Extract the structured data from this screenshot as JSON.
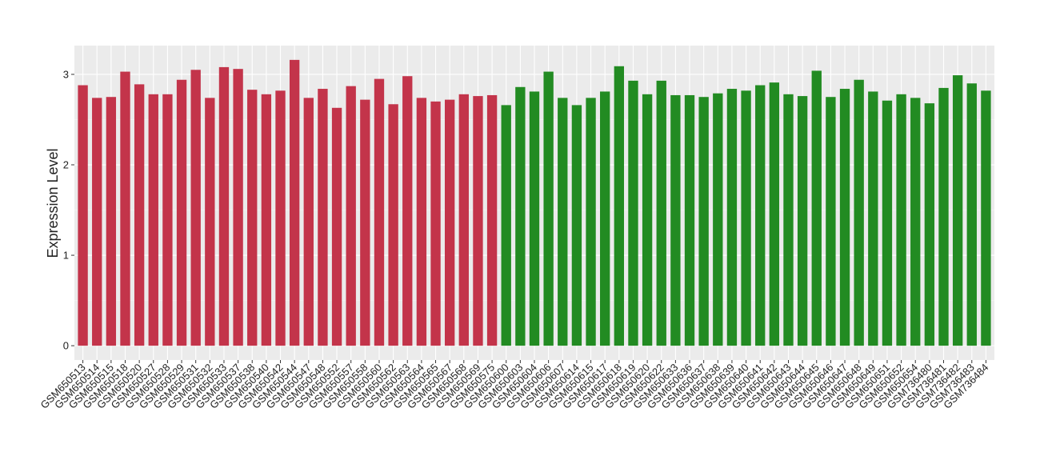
{
  "chart_data": {
    "type": "bar",
    "y_label": "Expression Level",
    "categories": [
      "GSM650513",
      "GSM650514",
      "GSM650515",
      "GSM650518",
      "GSM650520",
      "GSM650527",
      "GSM650528",
      "GSM650529",
      "GSM650531",
      "GSM650532",
      "GSM650533",
      "GSM650537",
      "GSM650538",
      "GSM650540",
      "GSM650542",
      "GSM650544",
      "GSM650547",
      "GSM650548",
      "GSM650552",
      "GSM650557",
      "GSM650558",
      "GSM650560",
      "GSM650562",
      "GSM650563",
      "GSM650564",
      "GSM650565",
      "GSM650567",
      "GSM650568",
      "GSM650569",
      "GSM650575",
      "GSM650600",
      "GSM650603",
      "GSM650604",
      "GSM650606",
      "GSM650607",
      "GSM650614",
      "GSM650615",
      "GSM650617",
      "GSM650618",
      "GSM650619",
      "GSM650620",
      "GSM650622",
      "GSM650633",
      "GSM650636",
      "GSM650637",
      "GSM650638",
      "GSM650639",
      "GSM650640",
      "GSM650641",
      "GSM650642",
      "GSM650643",
      "GSM650644",
      "GSM650645",
      "GSM650646",
      "GSM650647",
      "GSM650648",
      "GSM650649",
      "GSM650651",
      "GSM650652",
      "GSM650654",
      "GSM736480",
      "GSM736481",
      "GSM736482",
      "GSM736483",
      "GSM736484"
    ],
    "values": [
      2.88,
      2.74,
      2.75,
      3.03,
      2.89,
      2.78,
      2.78,
      2.94,
      3.05,
      2.74,
      3.08,
      3.06,
      2.83,
      2.78,
      2.82,
      3.16,
      2.74,
      2.84,
      2.63,
      2.87,
      2.72,
      2.95,
      2.67,
      2.98,
      2.74,
      2.7,
      2.72,
      2.78,
      2.76,
      2.77,
      2.66,
      2.86,
      2.81,
      3.03,
      2.74,
      2.66,
      2.74,
      2.81,
      3.09,
      2.93,
      2.78,
      2.93,
      2.77,
      2.77,
      2.75,
      2.79,
      2.84,
      2.82,
      2.88,
      2.91,
      2.78,
      2.76,
      3.04,
      2.75,
      2.84,
      2.94,
      2.81,
      2.71,
      2.78,
      2.74,
      2.68,
      2.85,
      2.99,
      2.9,
      2.82
    ],
    "colors": [
      "#c3344a",
      "#c3344a",
      "#c3344a",
      "#c3344a",
      "#c3344a",
      "#c3344a",
      "#c3344a",
      "#c3344a",
      "#c3344a",
      "#c3344a",
      "#c3344a",
      "#c3344a",
      "#c3344a",
      "#c3344a",
      "#c3344a",
      "#c3344a",
      "#c3344a",
      "#c3344a",
      "#c3344a",
      "#c3344a",
      "#c3344a",
      "#c3344a",
      "#c3344a",
      "#c3344a",
      "#c3344a",
      "#c3344a",
      "#c3344a",
      "#c3344a",
      "#c3344a",
      "#c3344a",
      "#228b22",
      "#228b22",
      "#228b22",
      "#228b22",
      "#228b22",
      "#228b22",
      "#228b22",
      "#228b22",
      "#228b22",
      "#228b22",
      "#228b22",
      "#228b22",
      "#228b22",
      "#228b22",
      "#228b22",
      "#228b22",
      "#228b22",
      "#228b22",
      "#228b22",
      "#228b22",
      "#228b22",
      "#228b22",
      "#228b22",
      "#228b22",
      "#228b22",
      "#228b22",
      "#228b22",
      "#228b22",
      "#228b22",
      "#228b22",
      "#228b22",
      "#228b22",
      "#228b22",
      "#228b22",
      "#228b22"
    ],
    "ylim": [
      -0.158,
      3.318
    ],
    "yticks": [
      0,
      1,
      2,
      3
    ],
    "grid": true
  }
}
